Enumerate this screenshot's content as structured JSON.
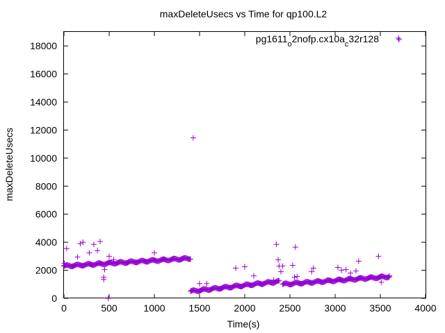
{
  "chart_data": {
    "type": "scatter",
    "title": "maxDeleteUsecs vs Time for qp100.L2",
    "xlabel": "Time(s)",
    "ylabel": "maxDeleteUsecs",
    "xlim": [
      0,
      4000
    ],
    "ylim": [
      0,
      19000
    ],
    "x_ticks": [
      "0",
      "500",
      "1000",
      "1500",
      "2000",
      "2500",
      "3000",
      "3500",
      "4000"
    ],
    "x_tick_values": [
      0,
      500,
      1000,
      1500,
      2000,
      2500,
      3000,
      3500,
      4000
    ],
    "y_ticks": [
      "0",
      "2000",
      "4000",
      "6000",
      "8000",
      "10000",
      "12000",
      "14000",
      "16000",
      "18000"
    ],
    "y_tick_values": [
      0,
      2000,
      4000,
      6000,
      8000,
      10000,
      12000,
      14000,
      16000,
      18000
    ],
    "grid": false,
    "legend_position": "top-right",
    "marker": "plus",
    "color": "#9400d3",
    "series": [
      {
        "name_parts": [
          "pg1611",
          "o",
          "2nofp.cx10a",
          "c",
          "32r128"
        ],
        "dense_segments": [
          {
            "x_start": 0,
            "x_end": 1400,
            "y_start": 2300,
            "y_end": 2850
          },
          {
            "x_start": 1400,
            "x_end": 2380,
            "y_start": 500,
            "y_end": 1200
          },
          {
            "x_start": 2420,
            "x_end": 3600,
            "y_start": 1000,
            "y_end": 1550
          }
        ],
        "outliers": [
          {
            "x": 5,
            "y": 2500
          },
          {
            "x": 30,
            "y": 3550
          },
          {
            "x": 150,
            "y": 2950
          },
          {
            "x": 180,
            "y": 3900
          },
          {
            "x": 210,
            "y": 4000
          },
          {
            "x": 280,
            "y": 3250
          },
          {
            "x": 330,
            "y": 3850
          },
          {
            "x": 370,
            "y": 3400
          },
          {
            "x": 400,
            "y": 4050
          },
          {
            "x": 440,
            "y": 1500
          },
          {
            "x": 440,
            "y": 1350
          },
          {
            "x": 450,
            "y": 2050
          },
          {
            "x": 490,
            "y": 0
          },
          {
            "x": 500,
            "y": 3000
          },
          {
            "x": 550,
            "y": 2750
          },
          {
            "x": 1000,
            "y": 3250
          },
          {
            "x": 1430,
            "y": 11450
          },
          {
            "x": 1500,
            "y": 1050
          },
          {
            "x": 1580,
            "y": 1050
          },
          {
            "x": 1900,
            "y": 2150
          },
          {
            "x": 2000,
            "y": 2250
          },
          {
            "x": 2100,
            "y": 1600
          },
          {
            "x": 2350,
            "y": 3850
          },
          {
            "x": 2370,
            "y": 2750
          },
          {
            "x": 2380,
            "y": 2300
          },
          {
            "x": 2420,
            "y": 2300
          },
          {
            "x": 2400,
            "y": 1900
          },
          {
            "x": 2320,
            "y": 1300
          },
          {
            "x": 2530,
            "y": 2350
          },
          {
            "x": 2560,
            "y": 3650
          },
          {
            "x": 2550,
            "y": 1500
          },
          {
            "x": 2580,
            "y": 1550
          },
          {
            "x": 2760,
            "y": 2150
          },
          {
            "x": 2740,
            "y": 1900
          },
          {
            "x": 3030,
            "y": 2200
          },
          {
            "x": 3070,
            "y": 2000
          },
          {
            "x": 3120,
            "y": 2050
          },
          {
            "x": 3170,
            "y": 1800
          },
          {
            "x": 3260,
            "y": 2650
          },
          {
            "x": 3230,
            "y": 1950
          },
          {
            "x": 3480,
            "y": 3000
          },
          {
            "x": 3510,
            "y": 1150
          },
          {
            "x": 3600,
            "y": 1600
          },
          {
            "x": 3700,
            "y": 18550
          }
        ]
      }
    ]
  }
}
